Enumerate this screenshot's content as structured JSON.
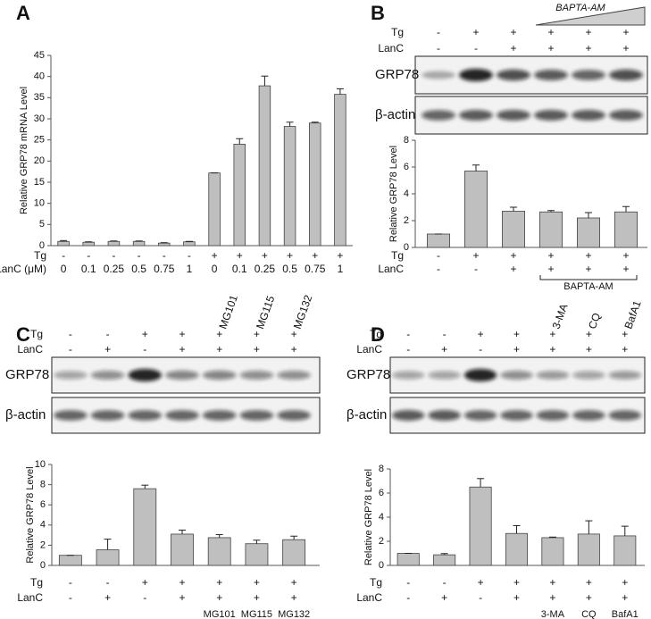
{
  "chart_data": [
    {
      "type": "bar",
      "panel": "A",
      "ylabel": "Relative GRP78 mRNA Level",
      "color": "#bfbfbf",
      "ylim": [
        0,
        45
      ],
      "yticks": [
        0,
        5,
        10,
        15,
        20,
        25,
        30,
        35,
        40,
        45
      ],
      "values": [
        1,
        0.8,
        1,
        1,
        0.6,
        0.9,
        17.2,
        24,
        37.8,
        28.2,
        29,
        35.8
      ],
      "errors": [
        0.2,
        0.1,
        0.1,
        0.1,
        0.1,
        0.1,
        0,
        1.3,
        2.3,
        1,
        0.2,
        1.3
      ],
      "rows": [
        {
          "label": "Tg",
          "values": [
            "-",
            "-",
            "-",
            "-",
            "-",
            "-",
            "+",
            "+",
            "+",
            "+",
            "+",
            "+"
          ]
        },
        {
          "label": "LanC (μM)",
          "values": [
            "0",
            "0.1",
            "0.25",
            "0.5",
            "0.75",
            "1",
            "0",
            "0.1",
            "0.25",
            "0.5",
            "0.75",
            "1"
          ]
        }
      ]
    },
    {
      "type": "bar",
      "panel": "B",
      "ylabel": "Relative GRP78 Level",
      "color": "#bfbfbf",
      "ylim": [
        0,
        8
      ],
      "yticks": [
        0,
        2,
        4,
        6,
        8
      ],
      "values": [
        1,
        5.7,
        2.7,
        2.65,
        2.2,
        2.65
      ],
      "errors": [
        0,
        0.45,
        0.3,
        0.1,
        0.4,
        0.4
      ],
      "blots": [
        "GRP78",
        "β-actin"
      ],
      "treatment": "BAPTA-AM",
      "rows": [
        {
          "label": "Tg",
          "values": [
            "-",
            "+",
            "+",
            "+",
            "+",
            "+"
          ]
        },
        {
          "label": "LanC",
          "values": [
            "-",
            "-",
            "+",
            "+",
            "+",
            "+"
          ]
        }
      ]
    },
    {
      "type": "bar",
      "panel": "C",
      "ylabel": "Relative GRP78 Level",
      "color": "#bfbfbf",
      "ylim": [
        0,
        10
      ],
      "yticks": [
        0,
        2,
        4,
        6,
        8,
        10
      ],
      "values": [
        1,
        1.55,
        7.6,
        3.1,
        2.75,
        2.15,
        2.55
      ],
      "errors": [
        0,
        1.05,
        0.35,
        0.4,
        0.3,
        0.35,
        0.35
      ],
      "blots": [
        "GRP78",
        "β-actin"
      ],
      "inhibitors": [
        "MG101",
        "MG115",
        "MG132"
      ],
      "rows": [
        {
          "label": "Tg",
          "values": [
            "-",
            "-",
            "+",
            "+",
            "+",
            "+",
            "+"
          ]
        },
        {
          "label": "LanC",
          "values": [
            "-",
            "+",
            "-",
            "+",
            "+",
            "+",
            "+"
          ]
        }
      ]
    },
    {
      "type": "bar",
      "panel": "D",
      "ylabel": "Relative GRP78 Level",
      "color": "#bfbfbf",
      "ylim": [
        0,
        8
      ],
      "yticks": [
        0,
        2,
        4,
        6,
        8
      ],
      "values": [
        1,
        0.88,
        6.5,
        2.65,
        2.3,
        2.6,
        2.45
      ],
      "errors": [
        0,
        0.1,
        0.7,
        0.65,
        0.05,
        1.1,
        0.8
      ],
      "blots": [
        "GRP78",
        "β-actin"
      ],
      "inhibitors": [
        "3-MA",
        "CQ",
        "BafA1"
      ],
      "rows": [
        {
          "label": "Tg",
          "values": [
            "-",
            "-",
            "+",
            "+",
            "+",
            "+",
            "+"
          ]
        },
        {
          "label": "LanC",
          "values": [
            "-",
            "+",
            "-",
            "+",
            "+",
            "+",
            "+"
          ]
        }
      ]
    }
  ]
}
